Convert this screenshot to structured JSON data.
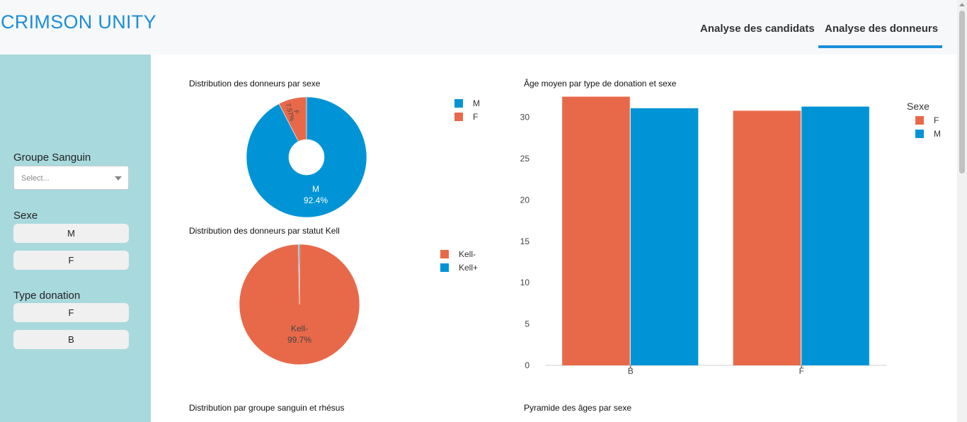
{
  "app": {
    "title": "CRIMSON UNITY"
  },
  "tabs": [
    {
      "label": "Analyse des candidats",
      "active": false
    },
    {
      "label": "Analyse des donneurs",
      "active": true
    }
  ],
  "colors": {
    "accent": "#1c8ed8",
    "orange": "#e8694a",
    "blue": "#0094d6",
    "sidebar": "#a8d9dd"
  },
  "sidebar": {
    "blood_group_label": "Groupe Sanguin",
    "blood_group_placeholder": "Select...",
    "sex_label": "Sexe",
    "sex_options": [
      "M",
      "F"
    ],
    "donation_label": "Type donation",
    "donation_options": [
      "F",
      "B"
    ]
  },
  "chart_data": [
    {
      "type": "pie",
      "title": "Distribution des donneurs par sexe",
      "donut": true,
      "labels": [
        "M",
        "F"
      ],
      "values": [
        92.4,
        7.57
      ],
      "slice_labels": [
        [
          "M",
          "92.4%"
        ],
        [
          "F",
          "7.57%"
        ]
      ],
      "legend": [
        "M",
        "F"
      ],
      "colors": [
        "#0094d6",
        "#e8694a"
      ]
    },
    {
      "type": "pie",
      "title": "Distribution des donneurs par statut Kell",
      "donut": false,
      "labels": [
        "Kell-",
        "Kell+"
      ],
      "values": [
        99.7,
        0.3
      ],
      "slice_labels": [
        [
          "Kell-",
          "99.7%"
        ]
      ],
      "legend": [
        "Kell-",
        "Kell+"
      ],
      "colors": [
        "#e8694a",
        "#0094d6"
      ]
    },
    {
      "type": "bar",
      "title": "Âge moyen par type de donation et sexe",
      "categories": [
        "B",
        "F"
      ],
      "legend_title": "Sexe",
      "series": [
        {
          "name": "F",
          "values": [
            32.5,
            30.8
          ],
          "color": "#e8694a"
        },
        {
          "name": "M",
          "values": [
            31.1,
            31.3
          ],
          "color": "#0094d6"
        }
      ],
      "yticks": [
        0,
        5,
        10,
        15,
        20,
        25,
        30
      ],
      "ylim": [
        0,
        34
      ]
    },
    {
      "type": "bar",
      "title": "Distribution par groupe sanguin et rhésus"
    },
    {
      "type": "bar",
      "title": "Pyramide des âges par sexe"
    }
  ]
}
